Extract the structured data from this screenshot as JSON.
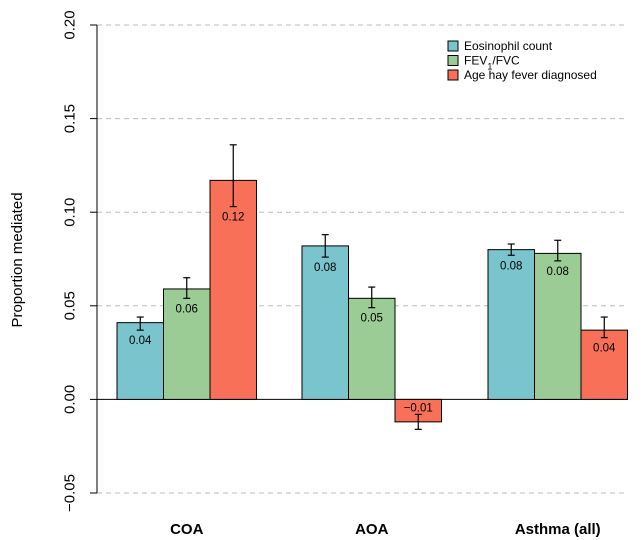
{
  "chart_data": {
    "type": "bar",
    "categories": [
      "COA",
      "AOA",
      "Asthma (all)"
    ],
    "series": [
      {
        "name": "Eosinophil count",
        "color": "#79c4cd",
        "values": [
          0.041,
          0.082,
          0.08
        ],
        "err_low": [
          0.037,
          0.076,
          0.077
        ],
        "err_high": [
          0.044,
          0.088,
          0.083
        ],
        "labels": [
          "0.04",
          "0.08",
          "0.08"
        ]
      },
      {
        "name": "FEV1/FVC",
        "color": "#9ccc95",
        "values": [
          0.059,
          0.054,
          0.078
        ],
        "err_low": [
          0.054,
          0.049,
          0.074
        ],
        "err_high": [
          0.065,
          0.06,
          0.085
        ],
        "labels": [
          "0.06",
          "0.05",
          "0.08"
        ]
      },
      {
        "name": "Age hay fever diagnosed",
        "color": "#f87058",
        "values": [
          0.117,
          -0.012,
          0.037
        ],
        "err_low": [
          0.103,
          -0.016,
          0.033
        ],
        "err_high": [
          0.136,
          -0.008,
          0.044
        ],
        "labels": [
          "0.12",
          "−0.01",
          "0.04"
        ]
      }
    ],
    "y_ticks": [
      "−0.05",
      "0.00",
      "0.05",
      "0.10",
      "0.15",
      "0.20"
    ],
    "y_tick_values": [
      -0.05,
      0,
      0.05,
      0.1,
      0.15,
      0.2
    ],
    "ylim": [
      -0.05,
      0.2
    ],
    "ylabel": "Proportion mediated",
    "xlabel": "",
    "title": "",
    "legend_position": "top-right",
    "legend": [
      {
        "text": "Eosinophil count"
      },
      {
        "prefix": "FEV",
        "sub": "1",
        "suffix": "/FVC"
      },
      {
        "text": "Age hay fever diagnosed"
      }
    ],
    "grid": "horizontal-dashed"
  }
}
